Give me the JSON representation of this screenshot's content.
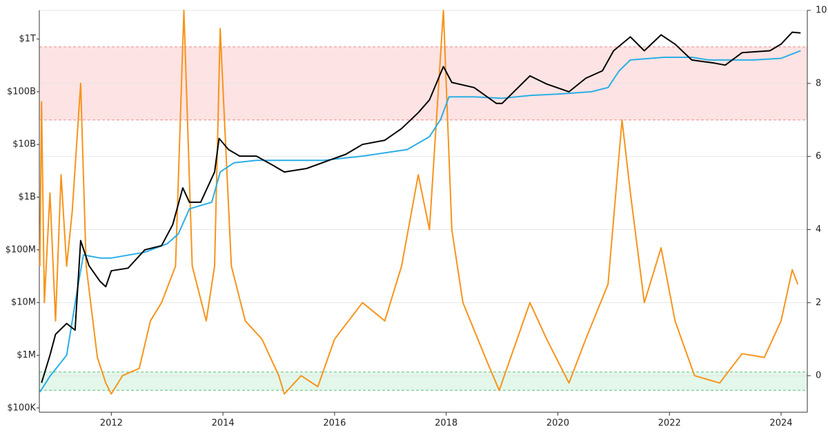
{
  "chart_data": {
    "type": "line",
    "ylog": true,
    "xlim": [
      2010.71,
      2024.47
    ],
    "xticks": [
      2012,
      2014,
      2016,
      2018,
      2020,
      2022,
      2024
    ],
    "ylim": [
      83000,
      3500000000000
    ],
    "yticks": [
      {
        "value": 100000,
        "label": "$100K"
      },
      {
        "value": 1000000,
        "label": "$1M"
      },
      {
        "value": 10000000,
        "label": "$10M"
      },
      {
        "value": 100000000,
        "label": "$100M"
      },
      {
        "value": 1000000000,
        "label": "$1B"
      },
      {
        "value": 10000000000,
        "label": "$10B"
      },
      {
        "value": 100000000000,
        "label": "$100B"
      },
      {
        "value": 1000000000000,
        "label": "$1T"
      }
    ],
    "y2lim": [
      -1,
      10
    ],
    "y2ticks": [
      0,
      2,
      4,
      6,
      8,
      10
    ],
    "grid": true,
    "bands": [
      {
        "from": 7,
        "to": 9,
        "color": "#fde3e3",
        "edge": "#e88a8a"
      },
      {
        "from": -0.4,
        "to": 0.1,
        "color": "#e3f7ea",
        "edge": "#5cbf78"
      }
    ],
    "series": [
      {
        "color": "#f7931a",
        "axis": "y2",
        "x": [
          2010.72,
          2010.75,
          2010.8,
          2010.9,
          2011.0,
          2011.1,
          2011.2,
          2011.3,
          2011.45,
          2011.55,
          2011.75,
          2011.9,
          2012.0,
          2012.2,
          2012.5,
          2012.7,
          2012.9,
          2013.15,
          2013.3,
          2013.45,
          2013.7,
          2013.85,
          2013.95,
          2014.15,
          2014.4,
          2014.7,
          2015.0,
          2015.1,
          2015.4,
          2015.7,
          2016.0,
          2016.5,
          2016.9,
          2017.2,
          2017.5,
          2017.7,
          2017.95,
          2018.1,
          2018.3,
          2018.7,
          2018.95,
          2019.5,
          2019.8,
          2020.2,
          2020.5,
          2020.9,
          2021.15,
          2021.3,
          2021.55,
          2021.85,
          2022.1,
          2022.45,
          2022.9,
          2023.3,
          2023.7,
          2024.0,
          2024.2,
          2024.3
        ],
        "values": [
          3,
          7.5,
          2,
          5,
          1.5,
          5.5,
          3,
          4.5,
          8,
          3,
          0.5,
          -0.2,
          -0.5,
          0,
          0.2,
          1.5,
          2,
          3,
          10,
          3,
          1.5,
          3,
          9.5,
          3,
          1.5,
          1,
          0,
          -0.5,
          0,
          -0.3,
          1,
          2,
          1.5,
          3,
          5.5,
          4,
          10,
          4,
          2,
          0.5,
          -0.4,
          2,
          1,
          -0.2,
          1,
          2.5,
          7,
          5,
          2,
          3.5,
          1.5,
          0,
          -0.2,
          0.6,
          0.5,
          1.5,
          2.9,
          2.5
        ]
      },
      {
        "color": "#29aee6",
        "x": [
          2010.72,
          2010.9,
          2011.2,
          2011.4,
          2011.5,
          2011.8,
          2012.0,
          2012.6,
          2013.0,
          2013.2,
          2013.4,
          2013.8,
          2013.95,
          2014.2,
          2014.6,
          2015.0,
          2015.8,
          2016.5,
          2017.3,
          2017.7,
          2017.9,
          2018.05,
          2018.5,
          2019.0,
          2019.5,
          2020.0,
          2020.6,
          2020.9,
          2021.1,
          2021.3,
          2021.9,
          2022.4,
          2022.7,
          2023.5,
          2024.0,
          2024.35
        ],
        "values": [
          200000,
          400000,
          1000000,
          20000000,
          80000000,
          70000000,
          70000000,
          90000000,
          130000000,
          200000000,
          600000000,
          800000000,
          3000000000,
          4500000000,
          5000000000,
          5000000000,
          5000000000,
          6000000000,
          8000000000,
          14000000000,
          30000000000,
          80000000000,
          80000000000,
          75000000000,
          85000000000,
          90000000000,
          100000000000,
          120000000000,
          250000000000,
          400000000000,
          450000000000,
          450000000000,
          400000000000,
          400000000000,
          430000000000,
          600000000000
        ]
      },
      {
        "color": "#000000",
        "x": [
          2010.75,
          2010.9,
          2011.0,
          2011.2,
          2011.35,
          2011.45,
          2011.6,
          2011.8,
          2011.9,
          2012.0,
          2012.3,
          2012.6,
          2012.9,
          2013.1,
          2013.28,
          2013.4,
          2013.6,
          2013.85,
          2013.93,
          2014.1,
          2014.3,
          2014.6,
          2014.9,
          2015.1,
          2015.5,
          2015.9,
          2016.2,
          2016.5,
          2016.9,
          2017.2,
          2017.5,
          2017.7,
          2017.95,
          2018.1,
          2018.5,
          2018.9,
          2019.0,
          2019.5,
          2019.8,
          2020.2,
          2020.5,
          2020.8,
          2021.0,
          2021.3,
          2021.55,
          2021.85,
          2022.1,
          2022.4,
          2022.8,
          2023.0,
          2023.3,
          2023.8,
          2024.0,
          2024.2,
          2024.35
        ],
        "values": [
          300000,
          1000000,
          2500000,
          4000000,
          3000000,
          150000000,
          50000000,
          25000000,
          20000000,
          40000000,
          45000000,
          100000000,
          120000000,
          300000000,
          1500000000,
          800000000,
          800000000,
          3000000000,
          13000000000,
          8000000000,
          6000000000,
          6000000000,
          4000000000,
          3000000000,
          3500000000,
          5000000000,
          6500000000,
          10000000000,
          12000000000,
          20000000000,
          40000000000,
          70000000000,
          300000000000,
          150000000000,
          120000000000,
          60000000000,
          60000000000,
          200000000000,
          140000000000,
          100000000000,
          180000000000,
          250000000000,
          600000000000,
          1100000000000,
          600000000000,
          1200000000000,
          800000000000,
          400000000000,
          350000000000,
          320000000000,
          550000000000,
          600000000000,
          800000000000,
          1350000000000,
          1300000000000
        ]
      }
    ]
  }
}
